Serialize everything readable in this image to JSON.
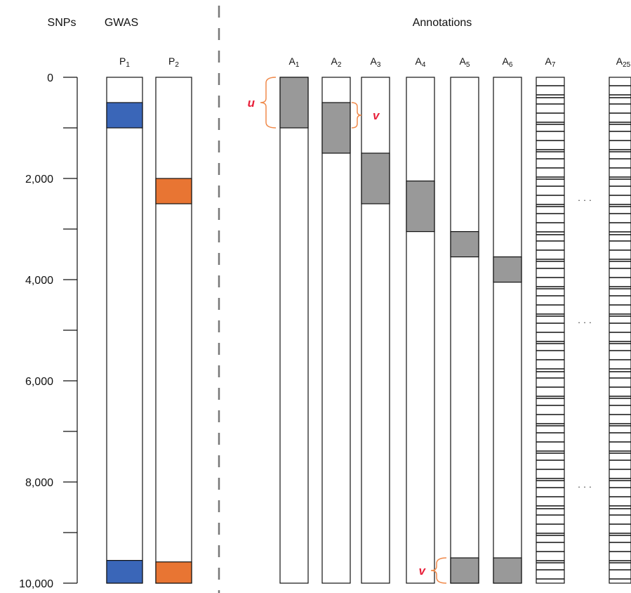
{
  "headers": {
    "snps": "SNPs",
    "gwas": "GWAS",
    "annotations": "Annotations"
  },
  "axis": {
    "min": 0,
    "max": 10000,
    "tick_values": [
      0,
      1000,
      2000,
      3000,
      4000,
      5000,
      6000,
      7000,
      8000,
      9000,
      10000
    ],
    "labels": [
      {
        "value": 0,
        "text": "0"
      },
      {
        "value": 2000,
        "text": "2,000"
      },
      {
        "value": 4000,
        "text": "4,000"
      },
      {
        "value": 6000,
        "text": "6,000"
      },
      {
        "value": 8000,
        "text": "8,000"
      },
      {
        "value": 10000,
        "text": "10,000"
      }
    ]
  },
  "gwas_columns": [
    {
      "base": "P",
      "sub": "1",
      "color": "#3a66b8",
      "blocks": [
        {
          "start": 500,
          "end": 1000
        },
        {
          "start": 9550,
          "end": 10000
        }
      ]
    },
    {
      "base": "P",
      "sub": "2",
      "color": "#e87533",
      "blocks": [
        {
          "start": 2000,
          "end": 2500
        },
        {
          "start": 9580,
          "end": 10000
        }
      ]
    }
  ],
  "annotation_columns": [
    {
      "base": "A",
      "sub": "1",
      "blocks": [
        {
          "start": 0,
          "end": 1000
        }
      ]
    },
    {
      "base": "A",
      "sub": "2",
      "blocks": [
        {
          "start": 500,
          "end": 1500
        }
      ]
    },
    {
      "base": "A",
      "sub": "3",
      "blocks": [
        {
          "start": 1500,
          "end": 2500
        }
      ]
    },
    {
      "base": "A",
      "sub": "4",
      "blocks": [
        {
          "start": 2050,
          "end": 3050
        }
      ]
    },
    {
      "base": "A",
      "sub": "5",
      "blocks": [
        {
          "start": 3050,
          "end": 3550
        },
        {
          "start": 9500,
          "end": 10000
        }
      ]
    },
    {
      "base": "A",
      "sub": "6",
      "blocks": [
        {
          "start": 3550,
          "end": 4050
        },
        {
          "start": 9500,
          "end": 10000
        }
      ]
    },
    {
      "base": "A",
      "sub": "7",
      "stripes": true
    },
    {
      "base": "A",
      "sub": "25",
      "stripes": true
    }
  ],
  "block_color": "#999999",
  "ellipsis": "· · ·",
  "brackets": [
    {
      "label": "u",
      "column": "A1",
      "start": 0,
      "end": 1000,
      "side": "left"
    },
    {
      "label": "v",
      "column": "A2",
      "start": 500,
      "end": 1000,
      "side": "right"
    },
    {
      "label": "v",
      "column": "A5",
      "start": 9500,
      "end": 10000,
      "side": "left"
    }
  ],
  "bracket_color": "#f08a4b",
  "bracket_label_color": "#e8203a"
}
